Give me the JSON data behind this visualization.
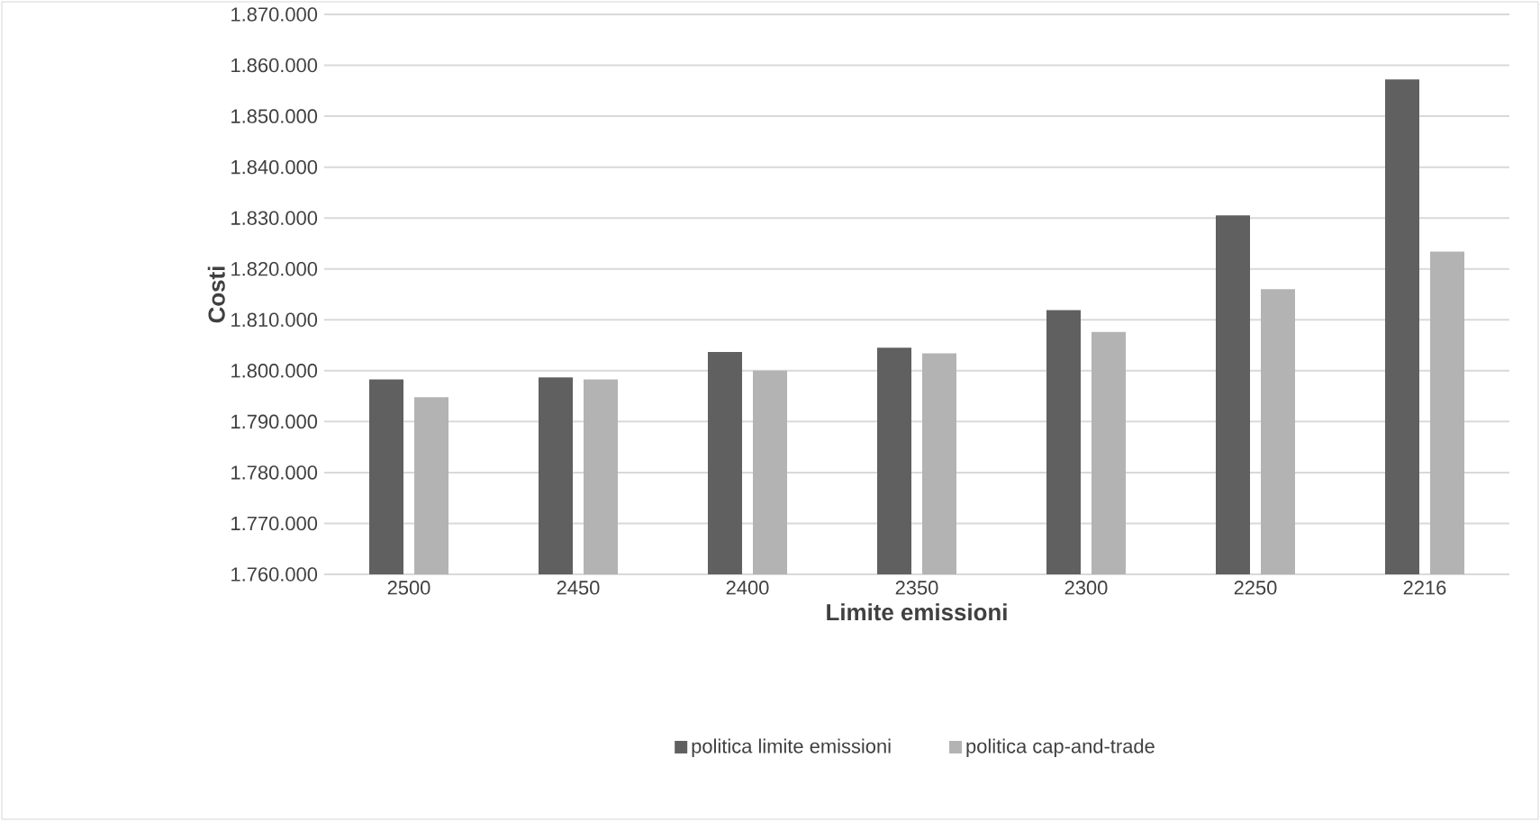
{
  "chart_data": {
    "type": "bar",
    "xlabel": "Limite emissioni",
    "ylabel": "Costi",
    "categories": [
      "2500",
      "2450",
      "2400",
      "2350",
      "2300",
      "2250",
      "2216"
    ],
    "series": [
      {
        "name": "politica limite emissioni",
        "color": "#606060",
        "values": [
          1798300,
          1798700,
          1803700,
          1804500,
          1811900,
          1830500,
          1857200
        ]
      },
      {
        "name": "politica cap-and-trade",
        "color": "#b3b3b3",
        "values": [
          1794800,
          1798300,
          1800000,
          1803400,
          1807600,
          1816000,
          1823400
        ]
      }
    ],
    "ylim": [
      1760000,
      1870000
    ],
    "yticks": [
      {
        "value": 1760000,
        "label": "1.760.000"
      },
      {
        "value": 1770000,
        "label": "1.770.000"
      },
      {
        "value": 1780000,
        "label": "1.780.000"
      },
      {
        "value": 1790000,
        "label": "1.790.000"
      },
      {
        "value": 1800000,
        "label": "1.800.000"
      },
      {
        "value": 1810000,
        "label": "1.810.000"
      },
      {
        "value": 1820000,
        "label": "1.820.000"
      },
      {
        "value": 1830000,
        "label": "1.830.000"
      },
      {
        "value": 1840000,
        "label": "1.840.000"
      },
      {
        "value": 1850000,
        "label": "1.850.000"
      },
      {
        "value": 1860000,
        "label": "1.860.000"
      },
      {
        "value": 1870000,
        "label": "1.870.000"
      }
    ],
    "grid": "y",
    "legend": "bottom"
  }
}
